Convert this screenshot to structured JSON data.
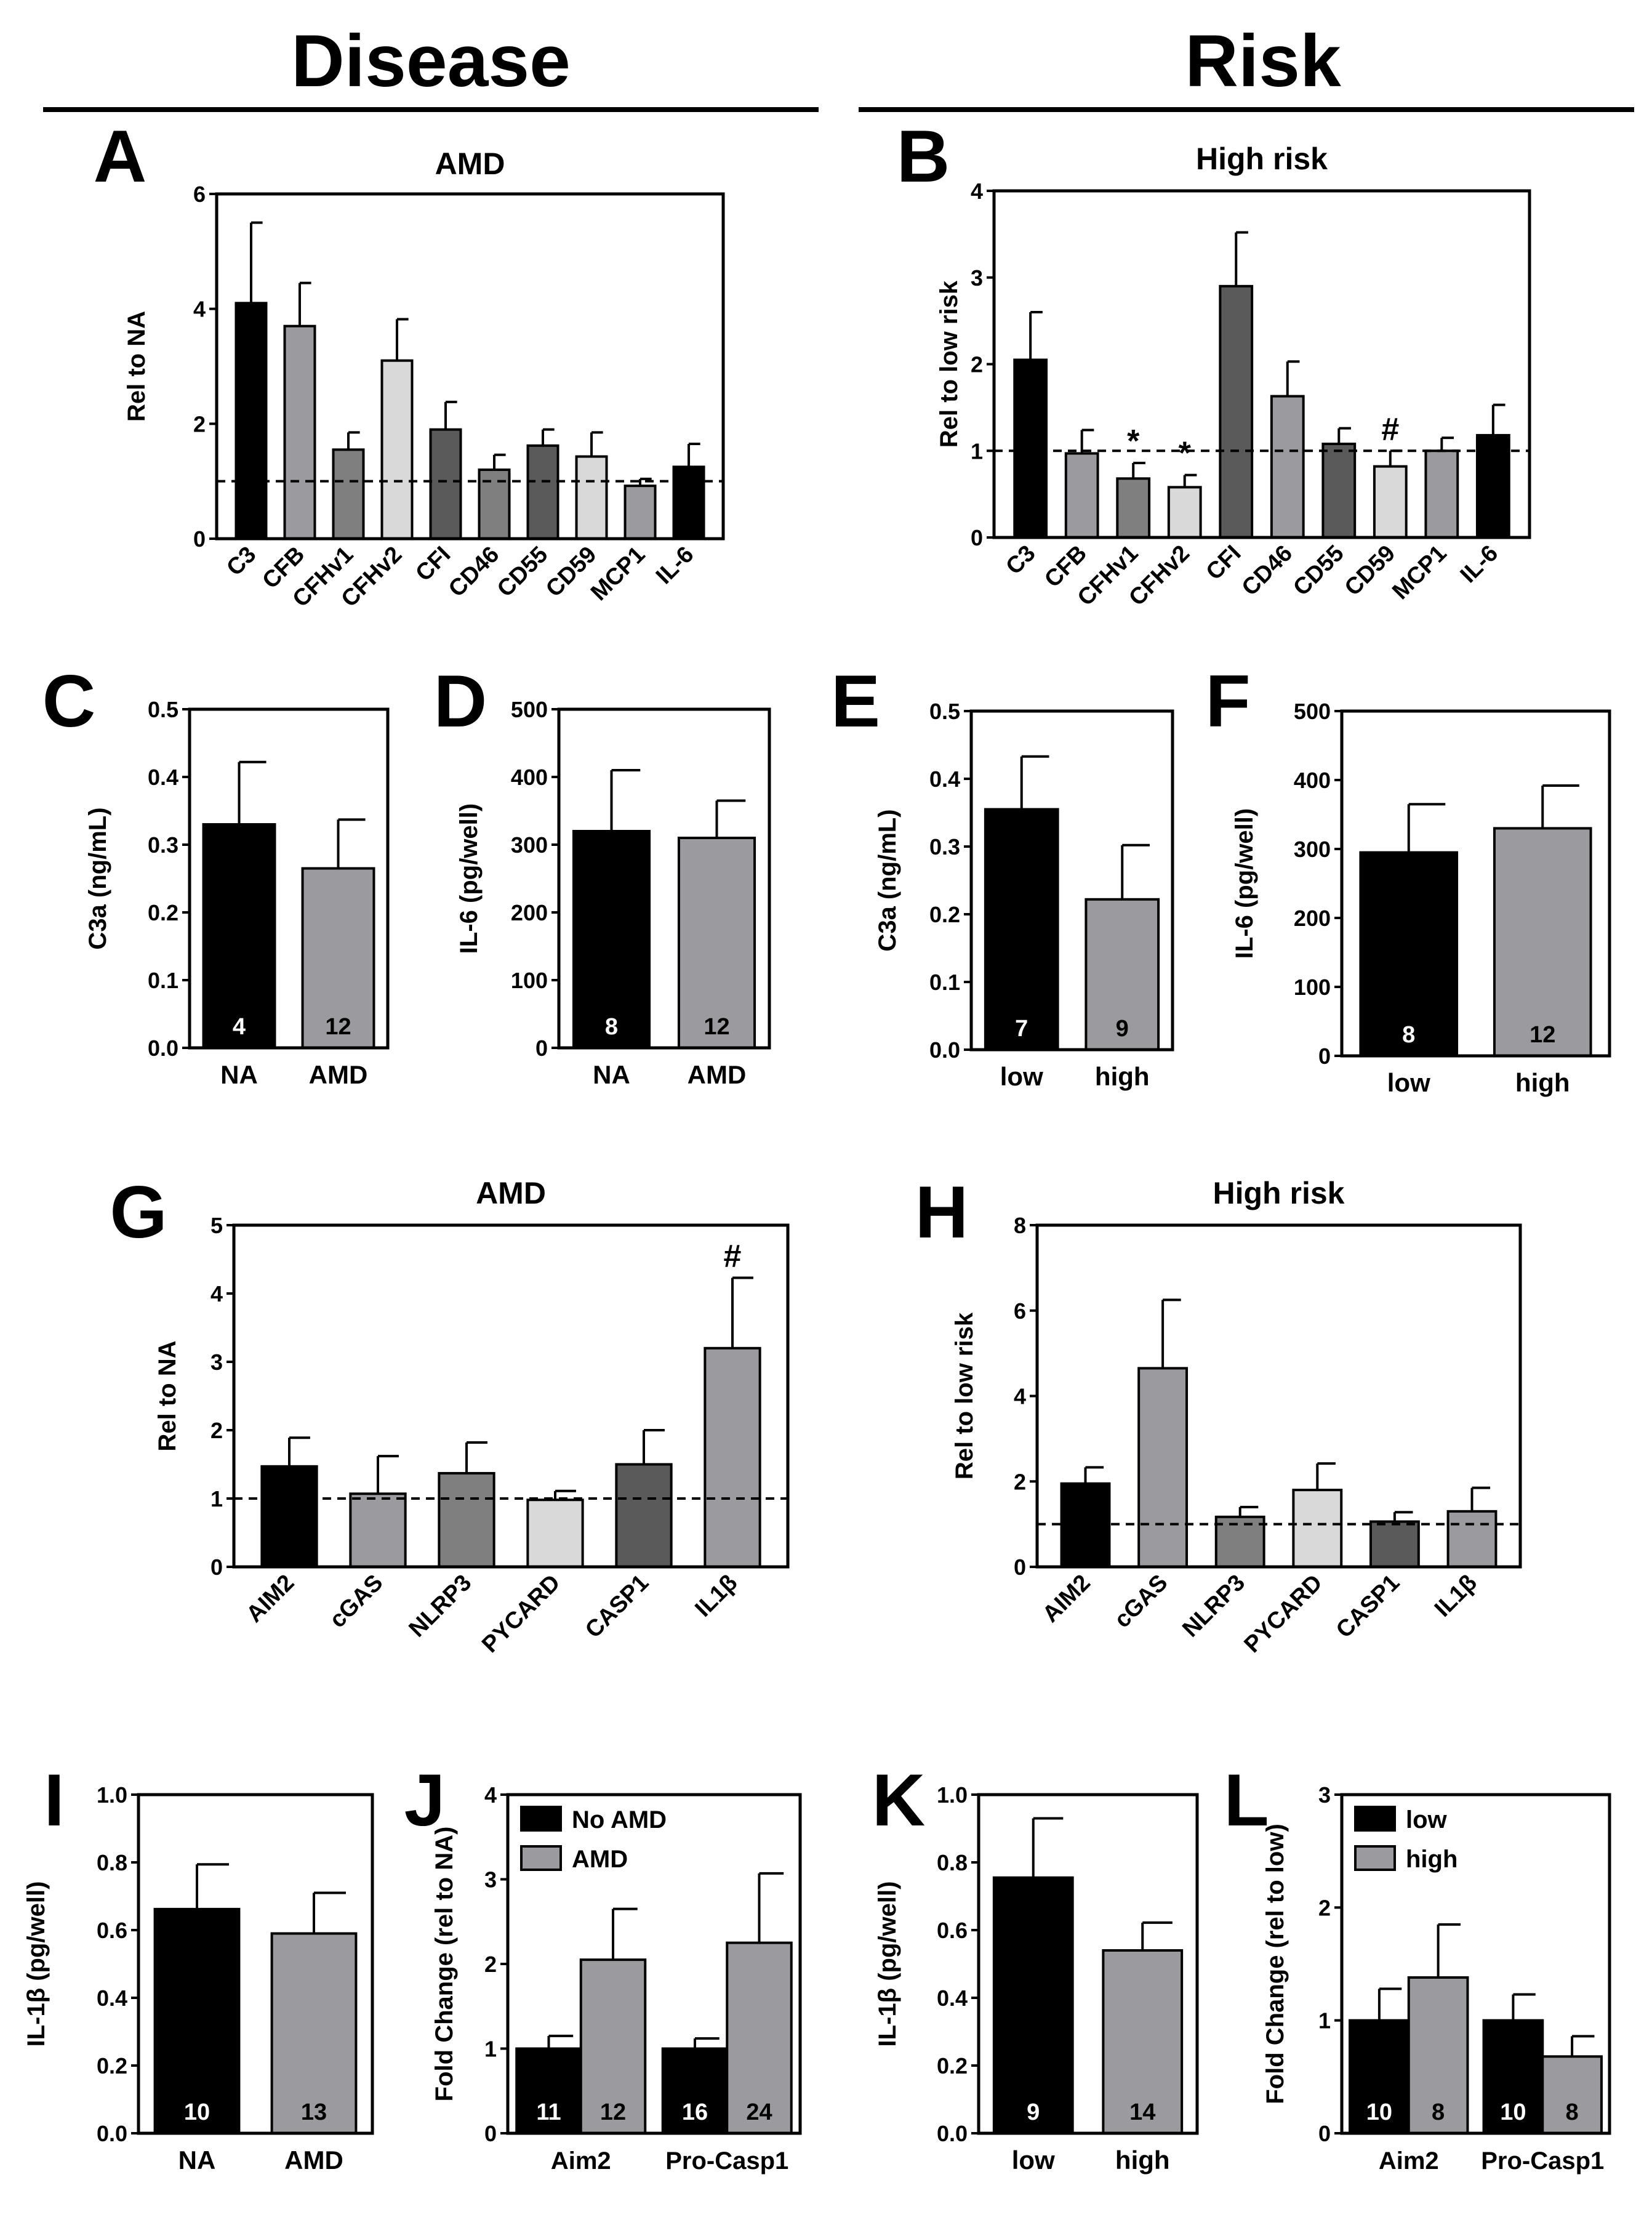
{
  "headers": {
    "disease": "Disease",
    "risk": "Risk"
  },
  "colors": {
    "black": "#000000",
    "dark_gray": "#5a5a5a",
    "mid_gray": "#7f7f7f",
    "gray": "#9b9b9f",
    "light_gray": "#d9d9d9"
  },
  "chart_data": [
    {
      "label": "A",
      "type": "bar",
      "title": "AMD",
      "ylabel": "Rel to NA",
      "ylim": [
        0,
        6
      ],
      "yticks": [
        0,
        2,
        4,
        6
      ],
      "categories": [
        "C3",
        "CFB",
        "CFHv1",
        "CFHv2",
        "CFI",
        "CD46",
        "CD55",
        "CD59",
        "MCP1",
        "IL-6"
      ],
      "values": [
        4.1,
        3.7,
        1.55,
        3.1,
        1.9,
        1.2,
        1.62,
        1.43,
        0.92,
        1.25
      ],
      "errors": [
        1.4,
        0.75,
        0.3,
        0.72,
        0.48,
        0.26,
        0.28,
        0.42,
        0.12,
        0.4
      ],
      "colors": [
        "#000000",
        "#9b9b9f",
        "#7f7f7f",
        "#d9d9d9",
        "#5a5a5a",
        "#7f7f7f",
        "#5a5a5a",
        "#d9d9d9",
        "#9b9b9f",
        "#000000"
      ],
      "reference_line": 1,
      "annotations": [
        "",
        "",
        "",
        "",
        "",
        "",
        "",
        "",
        "",
        ""
      ]
    },
    {
      "label": "B",
      "type": "bar",
      "title": "High risk",
      "ylabel": "Rel to low risk",
      "ylim": [
        0,
        4
      ],
      "yticks": [
        0,
        1,
        2,
        3,
        4
      ],
      "categories": [
        "C3",
        "CFB",
        "CFHv1",
        "CFHv2",
        "CFI",
        "CD46",
        "CD55",
        "CD59",
        "MCP1",
        "IL-6"
      ],
      "values": [
        2.05,
        0.97,
        0.68,
        0.58,
        2.9,
        1.63,
        1.08,
        0.82,
        1.0,
        1.18
      ],
      "errors": [
        0.55,
        0.27,
        0.18,
        0.14,
        0.62,
        0.4,
        0.18,
        0.18,
        0.15,
        0.35
      ],
      "colors": [
        "#000000",
        "#9b9b9f",
        "#7f7f7f",
        "#d9d9d9",
        "#5a5a5a",
        "#9b9b9f",
        "#5a5a5a",
        "#d9d9d9",
        "#9b9b9f",
        "#000000"
      ],
      "reference_line": 1,
      "annotations": [
        "",
        "",
        "*",
        "*",
        "",
        "",
        "",
        "#",
        "",
        ""
      ]
    },
    {
      "label": "C",
      "type": "bar",
      "title": "",
      "ylabel": "C3a (ng/mL)",
      "ylim": [
        0,
        0.5
      ],
      "yticks": [
        0.0,
        0.1,
        0.2,
        0.3,
        0.4,
        0.5
      ],
      "tick_decimals": 1,
      "categories": [
        "NA",
        "AMD"
      ],
      "values": [
        0.33,
        0.265
      ],
      "errors": [
        0.092,
        0.072
      ],
      "colors": [
        "#000000",
        "#9b9b9f"
      ],
      "n": [
        "4",
        "12"
      ]
    },
    {
      "label": "D",
      "type": "bar",
      "title": "",
      "ylabel": "IL-6 (pg/well)",
      "ylim": [
        0,
        500
      ],
      "yticks": [
        0,
        100,
        200,
        300,
        400,
        500
      ],
      "categories": [
        "NA",
        "AMD"
      ],
      "values": [
        320,
        310
      ],
      "errors": [
        90,
        55
      ],
      "colors": [
        "#000000",
        "#9b9b9f"
      ],
      "n": [
        "8",
        "12"
      ]
    },
    {
      "label": "E",
      "type": "bar",
      "title": "",
      "ylabel": "C3a (ng/mL)",
      "ylim": [
        0,
        0.5
      ],
      "yticks": [
        0.0,
        0.1,
        0.2,
        0.3,
        0.4,
        0.5
      ],
      "tick_decimals": 1,
      "categories": [
        "low",
        "high"
      ],
      "values": [
        0.355,
        0.222
      ],
      "errors": [
        0.078,
        0.08
      ],
      "colors": [
        "#000000",
        "#9b9b9f"
      ],
      "n": [
        "7",
        "9"
      ]
    },
    {
      "label": "F",
      "type": "bar",
      "title": "",
      "ylabel": "IL-6 (pg/well)",
      "ylim": [
        0,
        500
      ],
      "yticks": [
        0,
        100,
        200,
        300,
        400,
        500
      ],
      "categories": [
        "low",
        "high"
      ],
      "values": [
        295,
        330
      ],
      "errors": [
        70,
        62
      ],
      "colors": [
        "#000000",
        "#9b9b9f"
      ],
      "n": [
        "8",
        "12"
      ]
    },
    {
      "label": "G",
      "type": "bar",
      "title": "AMD",
      "ylabel": "Rel to NA",
      "ylim": [
        0,
        5
      ],
      "yticks": [
        0,
        1,
        2,
        3,
        4,
        5
      ],
      "categories": [
        "AIM2",
        "cGAS",
        "NLRP3",
        "PYCARD",
        "CASP1",
        "IL1β"
      ],
      "values": [
        1.47,
        1.07,
        1.37,
        0.98,
        1.5,
        3.2
      ],
      "errors": [
        0.42,
        0.55,
        0.45,
        0.13,
        0.5,
        1.03
      ],
      "colors": [
        "#000000",
        "#9b9b9f",
        "#7f7f7f",
        "#d9d9d9",
        "#5a5a5a",
        "#9b9b9f"
      ],
      "reference_line": 1,
      "annotations": [
        "",
        "",
        "",
        "",
        "",
        "#"
      ]
    },
    {
      "label": "H",
      "type": "bar",
      "title": "High risk",
      "ylabel": "Rel to low risk",
      "ylim": [
        0,
        8
      ],
      "yticks": [
        0,
        2,
        4,
        6,
        8
      ],
      "categories": [
        "AIM2",
        "cGAS",
        "NLRP3",
        "PYCARD",
        "CASP1",
        "IL1β"
      ],
      "values": [
        1.95,
        4.65,
        1.17,
        1.8,
        1.06,
        1.3
      ],
      "errors": [
        0.38,
        1.6,
        0.23,
        0.62,
        0.22,
        0.55
      ],
      "colors": [
        "#000000",
        "#9b9b9f",
        "#7f7f7f",
        "#d9d9d9",
        "#5a5a5a",
        "#9b9b9f"
      ],
      "reference_line": 1,
      "annotations": [
        "",
        "",
        "",
        "",
        "",
        ""
      ]
    },
    {
      "label": "I",
      "type": "bar",
      "title": "",
      "ylabel": "IL-1β (pg/well)",
      "ylim": [
        0,
        1.0
      ],
      "yticks": [
        0.0,
        0.2,
        0.4,
        0.6,
        0.8,
        1.0
      ],
      "tick_decimals": 1,
      "categories": [
        "NA",
        "AMD"
      ],
      "values": [
        0.662,
        0.59
      ],
      "errors": [
        0.132,
        0.12
      ],
      "colors": [
        "#000000",
        "#9b9b9f"
      ],
      "n": [
        "10",
        "13"
      ]
    },
    {
      "label": "J",
      "type": "grouped_bar",
      "title": "",
      "ylabel": "Fold Change (rel to NA)",
      "ylim": [
        0,
        4
      ],
      "yticks": [
        0,
        1,
        2,
        3,
        4
      ],
      "categories": [
        "Aim2",
        "Pro-Casp1"
      ],
      "series": [
        {
          "name": "No AMD",
          "color": "#000000",
          "values": [
            1.0,
            1.0
          ],
          "errors": [
            0.15,
            0.12
          ],
          "n": [
            "11",
            "16"
          ]
        },
        {
          "name": "AMD",
          "color": "#9b9b9f",
          "values": [
            2.05,
            2.25
          ],
          "errors": [
            0.6,
            0.82
          ],
          "n": [
            "12",
            "24"
          ]
        }
      ]
    },
    {
      "label": "K",
      "type": "bar",
      "title": "",
      "ylabel": "IL-1β (pg/well)",
      "ylim": [
        0,
        1.0
      ],
      "yticks": [
        0.0,
        0.2,
        0.4,
        0.6,
        0.8,
        1.0
      ],
      "tick_decimals": 1,
      "categories": [
        "low",
        "high"
      ],
      "values": [
        0.755,
        0.54
      ],
      "errors": [
        0.175,
        0.082
      ],
      "colors": [
        "#000000",
        "#9b9b9f"
      ],
      "n": [
        "9",
        "14"
      ]
    },
    {
      "label": "L",
      "type": "grouped_bar",
      "title": "",
      "ylabel": "Fold Change (rel to low)",
      "ylim": [
        0,
        3
      ],
      "yticks": [
        0,
        1,
        2,
        3
      ],
      "categories": [
        "Aim2",
        "Pro-Casp1"
      ],
      "series": [
        {
          "name": "low",
          "color": "#000000",
          "values": [
            1.0,
            1.0
          ],
          "errors": [
            0.28,
            0.23
          ],
          "n": [
            "10",
            "10"
          ]
        },
        {
          "name": "high",
          "color": "#9b9b9f",
          "values": [
            1.38,
            0.68
          ],
          "errors": [
            0.47,
            0.18
          ],
          "n": [
            "8",
            "8"
          ]
        }
      ]
    }
  ]
}
